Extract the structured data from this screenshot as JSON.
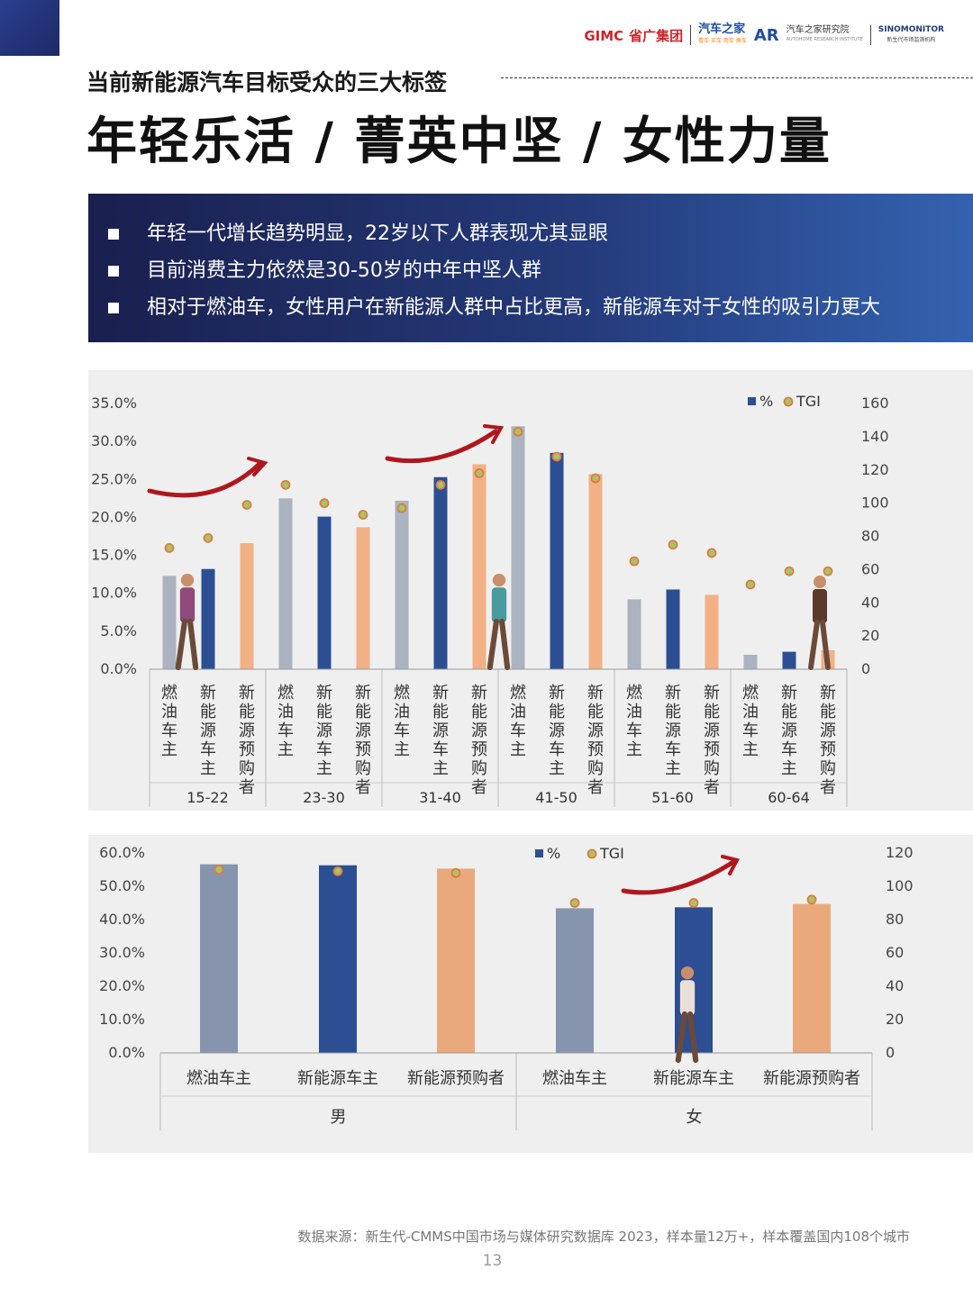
{
  "header": {
    "logos": {
      "gimc": "GIMC",
      "gimc_cn": "省广集团",
      "autohome": "汽车之家",
      "autohome_tag": "看车·买车·用车·换车",
      "ar": "AR",
      "ar_text": "汽车之家研究院",
      "ar_sub": "AUTOHOME RESEARCH INSTITUTE",
      "sino": "SINOMONITOR",
      "sino_cn": "新生代市场监测机构"
    },
    "subtitle": "当前新能源汽车目标受众的三大标签",
    "title": "年轻乐活 / 菁英中坚 / 女性力量"
  },
  "bullets": [
    "年轻一代增长趋势明显，22岁以下人群表现尤其显眼",
    "目前消费主力依然是30-50岁的中年中坚人群",
    "相对于燃油车，女性用户在新能源人群中占比更高，新能源车对于女性的吸引力更大"
  ],
  "colors": {
    "fuel_age": "#aab3bf",
    "nev": "#2c4e93",
    "prospect": "#f2b185",
    "fuel_gender": "#8695ad",
    "prospect_gender": "#e9a97c",
    "tgi_fill": "#a9c26b",
    "tgi_stroke": "#e07b3a",
    "arrow": "#b0161d"
  },
  "chart_data": [
    {
      "type": "bar",
      "subtype": "grouped bar with TGI scatter on secondary axis",
      "groups": [
        "15-22",
        "23-30",
        "31-40",
        "41-50",
        "51-60",
        "60-64"
      ],
      "categories": [
        "燃油车主",
        "新能源车主",
        "新能源预购者"
      ],
      "series": [
        {
          "name": "%",
          "axis": "left",
          "values": [
            [
              12.3,
              13.2,
              16.6
            ],
            [
              22.5,
              20.1,
              18.7
            ],
            [
              22.2,
              25.3,
              27.0
            ],
            [
              32.0,
              28.5,
              25.7
            ],
            [
              9.2,
              10.5,
              9.8
            ],
            [
              1.9,
              2.3,
              2.5
            ]
          ]
        },
        {
          "name": "TGI",
          "axis": "right",
          "values": [
            [
              73,
              79,
              99
            ],
            [
              111,
              100,
              93
            ],
            [
              97,
              111,
              118
            ],
            [
              143,
              128,
              115
            ],
            [
              65,
              75,
              70
            ],
            [
              51,
              59,
              59
            ]
          ]
        }
      ],
      "y_left": {
        "min": 0,
        "max": 35,
        "ticks": [
          "35.0%",
          "30.0%",
          "25.0%",
          "20.0%",
          "15.0%",
          "10.0%",
          "5.0%",
          "0.0%"
        ]
      },
      "y_right": {
        "min": 0,
        "max": 160,
        "ticks": [
          "160",
          "140",
          "120",
          "100",
          "80",
          "60",
          "40",
          "20",
          "0"
        ]
      },
      "legend": [
        "%",
        "TGI"
      ],
      "legend_position": "top-right",
      "grid": false
    },
    {
      "type": "bar",
      "subtype": "grouped bar with TGI scatter on secondary axis",
      "groups": [
        "男",
        "女"
      ],
      "categories": [
        "燃油车主",
        "新能源车主",
        "新能源预购者"
      ],
      "series": [
        {
          "name": "%",
          "axis": "left",
          "values": [
            [
              56.6,
              56.3,
              55.3
            ],
            [
              43.4,
              43.7,
              44.7
            ]
          ]
        },
        {
          "name": "TGI",
          "axis": "right",
          "values": [
            [
              110,
              109,
              108
            ],
            [
              90,
              90,
              92
            ]
          ]
        }
      ],
      "y_left": {
        "min": 0,
        "max": 60,
        "ticks": [
          "60.0%",
          "50.0%",
          "40.0%",
          "30.0%",
          "20.0%",
          "10.0%",
          "0.0%"
        ]
      },
      "y_right": {
        "min": 0,
        "max": 120,
        "ticks": [
          "120",
          "100",
          "80",
          "60",
          "40",
          "20",
          "0"
        ]
      },
      "legend": [
        "%",
        "TGI"
      ],
      "legend_position": "top-center",
      "grid": false
    }
  ],
  "footer": {
    "source": "数据来源：新生代-CMMS中国市场与媒体研究数据库 2023，样本量12万+，样本覆盖国内108个城市",
    "page": "13"
  }
}
